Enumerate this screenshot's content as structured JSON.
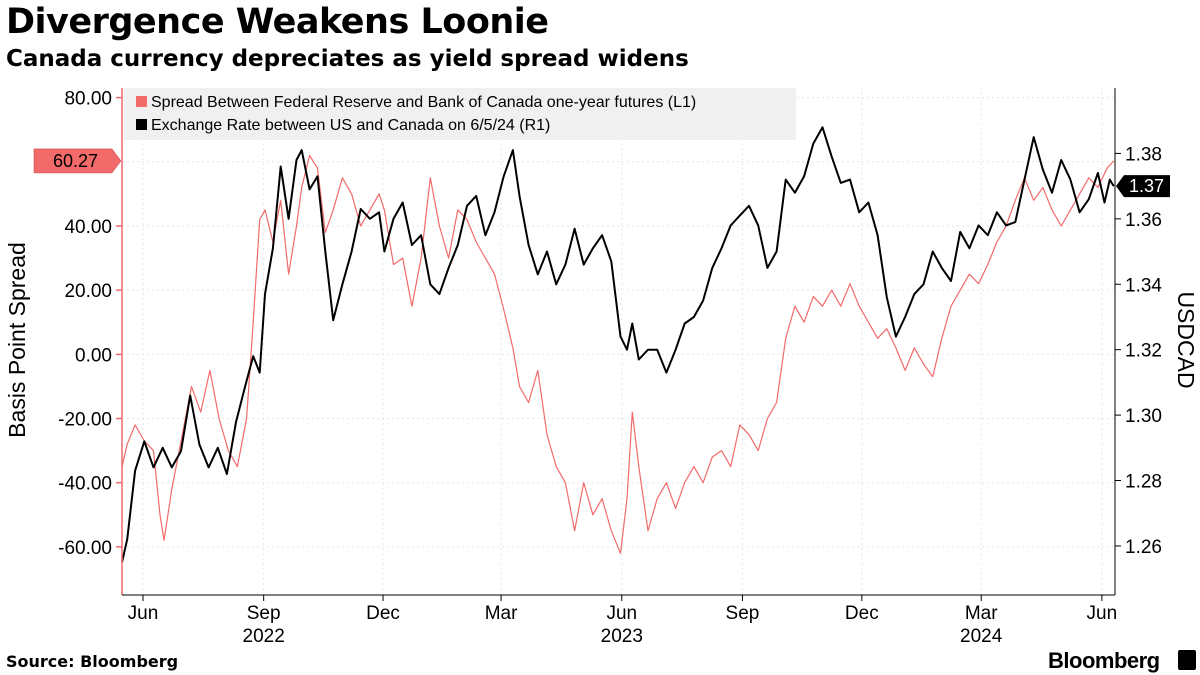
{
  "header": {
    "title": "Divergence Weakens Loonie",
    "subtitle": "Canada currency depreciates as yield spread widens"
  },
  "footer": {
    "source": "Source: Bloomberg",
    "brand": "Bloomberg"
  },
  "colors": {
    "spread": "#f26a6a",
    "usdcad": "#000000",
    "grid": "#e6e6e6",
    "legend_bg": "#f0f0f0"
  },
  "chart_data": {
    "type": "line",
    "title": "Divergence Weakens Loonie",
    "subtitle": "Canada currency depreciates as yield spread widens",
    "ylabel_left": "Basis Point Spread",
    "ylabel_right": "USDCAD",
    "ylim_left": [
      -75,
      83
    ],
    "ylim_right": [
      1.245,
      1.4
    ],
    "yticks_left": [
      "80.00",
      "40.00",
      "20.00",
      "0.00",
      "-20.00",
      "-40.00",
      "-60.00"
    ],
    "yticks_left_values": [
      80,
      40,
      20,
      0,
      -20,
      -40,
      -60
    ],
    "yticks_right": [
      "1.38",
      "1.36",
      "1.34",
      "1.32",
      "1.30",
      "1.28",
      "1.26"
    ],
    "yticks_right_values": [
      1.38,
      1.36,
      1.34,
      1.32,
      1.3,
      1.28,
      1.26
    ],
    "x_range": [
      "2022-05-16",
      "2024-06-11"
    ],
    "month_ticks": [
      {
        "date": "2022-06-01",
        "label": "Jun"
      },
      {
        "date": "2022-09-01",
        "label": "Sep"
      },
      {
        "date": "2022-12-01",
        "label": "Dec"
      },
      {
        "date": "2023-03-01",
        "label": "Mar"
      },
      {
        "date": "2023-06-01",
        "label": "Jun"
      },
      {
        "date": "2023-09-01",
        "label": "Sep"
      },
      {
        "date": "2023-12-01",
        "label": "Dec"
      },
      {
        "date": "2024-03-01",
        "label": "Mar"
      },
      {
        "date": "2024-06-01",
        "label": "Jun"
      }
    ],
    "year_ticks": [
      {
        "date": "2022-09-01",
        "label": "2022"
      },
      {
        "date": "2023-06-01",
        "label": "2023"
      },
      {
        "date": "2024-03-01",
        "label": "2024"
      }
    ],
    "last_value_left": "60.27",
    "last_value_right": "1.37",
    "grid": true,
    "legend_position": "top-left",
    "series": [
      {
        "name": "Spread Between Federal Reserve and Bank of Canada one-year futures (L1)",
        "axis": "left",
        "color": "#f26a6a",
        "points": [
          [
            "2022-05-16",
            -35
          ],
          [
            "2022-05-20",
            -28
          ],
          [
            "2022-05-26",
            -22
          ],
          [
            "2022-06-02",
            -27
          ],
          [
            "2022-06-09",
            -30
          ],
          [
            "2022-06-14",
            -50
          ],
          [
            "2022-06-17",
            -58
          ],
          [
            "2022-06-23",
            -42
          ],
          [
            "2022-07-01",
            -25
          ],
          [
            "2022-07-08",
            -10
          ],
          [
            "2022-07-15",
            -18
          ],
          [
            "2022-07-22",
            -5
          ],
          [
            "2022-07-29",
            -20
          ],
          [
            "2022-08-05",
            -30
          ],
          [
            "2022-08-12",
            -35
          ],
          [
            "2022-08-19",
            -20
          ],
          [
            "2022-08-24",
            10
          ],
          [
            "2022-08-29",
            42
          ],
          [
            "2022-09-02",
            45
          ],
          [
            "2022-09-08",
            35
          ],
          [
            "2022-09-14",
            48
          ],
          [
            "2022-09-20",
            25
          ],
          [
            "2022-09-26",
            40
          ],
          [
            "2022-09-30",
            52
          ],
          [
            "2022-10-06",
            62
          ],
          [
            "2022-10-12",
            58
          ],
          [
            "2022-10-18",
            38
          ],
          [
            "2022-10-24",
            45
          ],
          [
            "2022-10-31",
            55
          ],
          [
            "2022-11-07",
            50
          ],
          [
            "2022-11-14",
            40
          ],
          [
            "2022-11-21",
            45
          ],
          [
            "2022-11-28",
            50
          ],
          [
            "2022-12-02",
            45
          ],
          [
            "2022-12-09",
            28
          ],
          [
            "2022-12-16",
            30
          ],
          [
            "2022-12-23",
            15
          ],
          [
            "2022-12-30",
            30
          ],
          [
            "2023-01-06",
            55
          ],
          [
            "2023-01-13",
            40
          ],
          [
            "2023-01-20",
            30
          ],
          [
            "2023-01-27",
            45
          ],
          [
            "2023-02-03",
            42
          ],
          [
            "2023-02-10",
            35
          ],
          [
            "2023-02-17",
            30
          ],
          [
            "2023-02-24",
            25
          ],
          [
            "2023-03-03",
            14
          ],
          [
            "2023-03-10",
            2
          ],
          [
            "2023-03-15",
            -10
          ],
          [
            "2023-03-22",
            -15
          ],
          [
            "2023-03-29",
            -5
          ],
          [
            "2023-04-05",
            -25
          ],
          [
            "2023-04-12",
            -35
          ],
          [
            "2023-04-19",
            -40
          ],
          [
            "2023-04-26",
            -55
          ],
          [
            "2023-05-03",
            -40
          ],
          [
            "2023-05-10",
            -50
          ],
          [
            "2023-05-17",
            -45
          ],
          [
            "2023-05-24",
            -55
          ],
          [
            "2023-05-31",
            -62
          ],
          [
            "2023-06-05",
            -45
          ],
          [
            "2023-06-09",
            -18
          ],
          [
            "2023-06-14",
            -35
          ],
          [
            "2023-06-21",
            -55
          ],
          [
            "2023-06-28",
            -45
          ],
          [
            "2023-07-05",
            -40
          ],
          [
            "2023-07-12",
            -48
          ],
          [
            "2023-07-19",
            -40
          ],
          [
            "2023-07-26",
            -35
          ],
          [
            "2023-08-02",
            -40
          ],
          [
            "2023-08-09",
            -32
          ],
          [
            "2023-08-16",
            -30
          ],
          [
            "2023-08-23",
            -35
          ],
          [
            "2023-08-30",
            -22
          ],
          [
            "2023-09-06",
            -25
          ],
          [
            "2023-09-13",
            -30
          ],
          [
            "2023-09-20",
            -20
          ],
          [
            "2023-09-27",
            -15
          ],
          [
            "2023-10-04",
            5
          ],
          [
            "2023-10-11",
            15
          ],
          [
            "2023-10-18",
            10
          ],
          [
            "2023-10-25",
            18
          ],
          [
            "2023-11-01",
            15
          ],
          [
            "2023-11-08",
            20
          ],
          [
            "2023-11-15",
            15
          ],
          [
            "2023-11-22",
            22
          ],
          [
            "2023-11-29",
            15
          ],
          [
            "2023-12-06",
            10
          ],
          [
            "2023-12-13",
            5
          ],
          [
            "2023-12-20",
            8
          ],
          [
            "2023-12-27",
            2
          ],
          [
            "2024-01-03",
            -5
          ],
          [
            "2024-01-10",
            2
          ],
          [
            "2024-01-17",
            -3
          ],
          [
            "2024-01-24",
            -7
          ],
          [
            "2024-01-31",
            5
          ],
          [
            "2024-02-07",
            15
          ],
          [
            "2024-02-14",
            20
          ],
          [
            "2024-02-21",
            25
          ],
          [
            "2024-02-28",
            22
          ],
          [
            "2024-03-06",
            28
          ],
          [
            "2024-03-13",
            35
          ],
          [
            "2024-03-20",
            40
          ],
          [
            "2024-03-27",
            48
          ],
          [
            "2024-04-03",
            55
          ],
          [
            "2024-04-10",
            48
          ],
          [
            "2024-04-17",
            52
          ],
          [
            "2024-04-24",
            45
          ],
          [
            "2024-05-01",
            40
          ],
          [
            "2024-05-08",
            45
          ],
          [
            "2024-05-15",
            50
          ],
          [
            "2024-05-22",
            55
          ],
          [
            "2024-05-29",
            52
          ],
          [
            "2024-06-05",
            58
          ],
          [
            "2024-06-10",
            60.27
          ]
        ]
      },
      {
        "name": "Exchange Rate between US and Canada on 6/5/24 (R1)",
        "axis": "right",
        "color": "#000000",
        "points": [
          [
            "2022-05-16",
            1.255
          ],
          [
            "2022-05-20",
            1.262
          ],
          [
            "2022-05-26",
            1.283
          ],
          [
            "2022-06-02",
            1.292
          ],
          [
            "2022-06-09",
            1.284
          ],
          [
            "2022-06-16",
            1.29
          ],
          [
            "2022-06-23",
            1.284
          ],
          [
            "2022-06-30",
            1.289
          ],
          [
            "2022-07-07",
            1.306
          ],
          [
            "2022-07-14",
            1.291
          ],
          [
            "2022-07-21",
            1.284
          ],
          [
            "2022-07-28",
            1.29
          ],
          [
            "2022-08-04",
            1.282
          ],
          [
            "2022-08-11",
            1.298
          ],
          [
            "2022-08-18",
            1.309
          ],
          [
            "2022-08-24",
            1.318
          ],
          [
            "2022-08-29",
            1.313
          ],
          [
            "2022-09-02",
            1.337
          ],
          [
            "2022-09-08",
            1.351
          ],
          [
            "2022-09-14",
            1.376
          ],
          [
            "2022-09-20",
            1.36
          ],
          [
            "2022-09-26",
            1.378
          ],
          [
            "2022-09-30",
            1.381
          ],
          [
            "2022-10-06",
            1.369
          ],
          [
            "2022-10-12",
            1.373
          ],
          [
            "2022-10-18",
            1.35
          ],
          [
            "2022-10-24",
            1.329
          ],
          [
            "2022-10-31",
            1.34
          ],
          [
            "2022-11-07",
            1.35
          ],
          [
            "2022-11-14",
            1.363
          ],
          [
            "2022-11-21",
            1.36
          ],
          [
            "2022-11-28",
            1.362
          ],
          [
            "2022-12-02",
            1.35
          ],
          [
            "2022-12-09",
            1.36
          ],
          [
            "2022-12-16",
            1.365
          ],
          [
            "2022-12-23",
            1.352
          ],
          [
            "2022-12-30",
            1.355
          ],
          [
            "2023-01-06",
            1.34
          ],
          [
            "2023-01-13",
            1.337
          ],
          [
            "2023-01-20",
            1.345
          ],
          [
            "2023-01-27",
            1.352
          ],
          [
            "2023-02-03",
            1.364
          ],
          [
            "2023-02-10",
            1.367
          ],
          [
            "2023-02-17",
            1.355
          ],
          [
            "2023-02-24",
            1.362
          ],
          [
            "2023-03-03",
            1.373
          ],
          [
            "2023-03-10",
            1.381
          ],
          [
            "2023-03-15",
            1.367
          ],
          [
            "2023-03-22",
            1.352
          ],
          [
            "2023-03-29",
            1.343
          ],
          [
            "2023-04-05",
            1.35
          ],
          [
            "2023-04-12",
            1.34
          ],
          [
            "2023-04-19",
            1.346
          ],
          [
            "2023-04-26",
            1.357
          ],
          [
            "2023-05-03",
            1.346
          ],
          [
            "2023-05-10",
            1.351
          ],
          [
            "2023-05-17",
            1.355
          ],
          [
            "2023-05-24",
            1.347
          ],
          [
            "2023-05-31",
            1.324
          ],
          [
            "2023-06-05",
            1.32
          ],
          [
            "2023-06-09",
            1.328
          ],
          [
            "2023-06-14",
            1.317
          ],
          [
            "2023-06-21",
            1.32
          ],
          [
            "2023-06-28",
            1.32
          ],
          [
            "2023-07-05",
            1.313
          ],
          [
            "2023-07-12",
            1.32
          ],
          [
            "2023-07-19",
            1.328
          ],
          [
            "2023-07-26",
            1.33
          ],
          [
            "2023-08-02",
            1.335
          ],
          [
            "2023-08-09",
            1.345
          ],
          [
            "2023-08-16",
            1.351
          ],
          [
            "2023-08-23",
            1.358
          ],
          [
            "2023-08-30",
            1.361
          ],
          [
            "2023-09-06",
            1.364
          ],
          [
            "2023-09-13",
            1.358
          ],
          [
            "2023-09-20",
            1.345
          ],
          [
            "2023-09-27",
            1.35
          ],
          [
            "2023-10-04",
            1.372
          ],
          [
            "2023-10-11",
            1.368
          ],
          [
            "2023-10-18",
            1.373
          ],
          [
            "2023-10-25",
            1.383
          ],
          [
            "2023-11-01",
            1.388
          ],
          [
            "2023-11-08",
            1.379
          ],
          [
            "2023-11-15",
            1.371
          ],
          [
            "2023-11-22",
            1.372
          ],
          [
            "2023-11-29",
            1.362
          ],
          [
            "2023-12-06",
            1.365
          ],
          [
            "2023-12-13",
            1.355
          ],
          [
            "2023-12-20",
            1.336
          ],
          [
            "2023-12-27",
            1.324
          ],
          [
            "2024-01-03",
            1.33
          ],
          [
            "2024-01-10",
            1.337
          ],
          [
            "2024-01-17",
            1.34
          ],
          [
            "2024-01-24",
            1.35
          ],
          [
            "2024-01-31",
            1.345
          ],
          [
            "2024-02-07",
            1.341
          ],
          [
            "2024-02-14",
            1.356
          ],
          [
            "2024-02-21",
            1.351
          ],
          [
            "2024-02-28",
            1.358
          ],
          [
            "2024-03-06",
            1.355
          ],
          [
            "2024-03-13",
            1.362
          ],
          [
            "2024-03-20",
            1.358
          ],
          [
            "2024-03-27",
            1.359
          ],
          [
            "2024-04-03",
            1.372
          ],
          [
            "2024-04-10",
            1.385
          ],
          [
            "2024-04-17",
            1.375
          ],
          [
            "2024-04-24",
            1.368
          ],
          [
            "2024-05-01",
            1.378
          ],
          [
            "2024-05-08",
            1.372
          ],
          [
            "2024-05-15",
            1.362
          ],
          [
            "2024-05-22",
            1.366
          ],
          [
            "2024-05-29",
            1.374
          ],
          [
            "2024-06-03",
            1.365
          ],
          [
            "2024-06-07",
            1.372
          ],
          [
            "2024-06-10",
            1.37
          ]
        ]
      }
    ]
  }
}
